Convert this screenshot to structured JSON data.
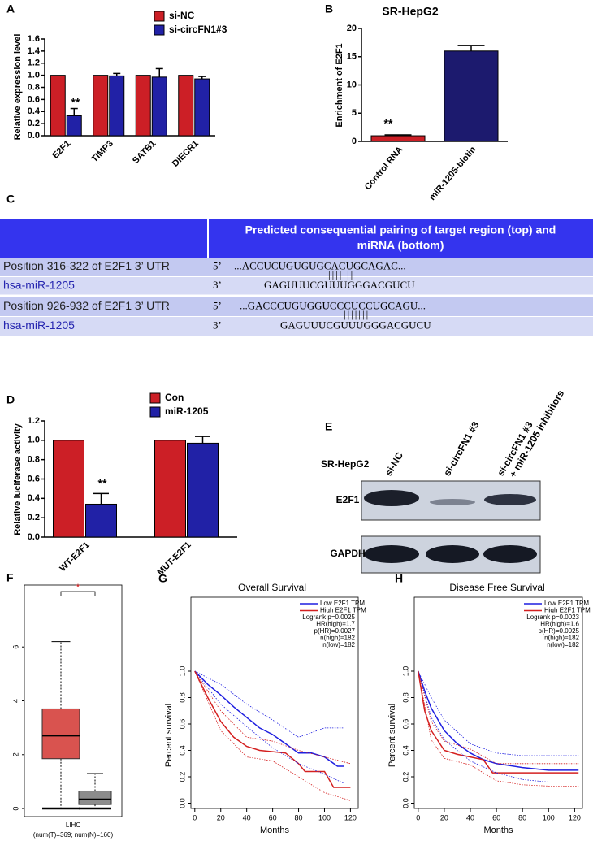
{
  "chart_data": [
    {
      "type": "bar",
      "panel": "A",
      "ylabel": "Relative  expression level",
      "categories": [
        "E2F1",
        "TIMP3",
        "SATB1",
        "DIECR1"
      ],
      "series": [
        {
          "name": "si-NC",
          "color": "#cc1f26",
          "values": [
            1,
            1,
            1,
            1
          ]
        },
        {
          "name": "si-circFN1#3",
          "color": "#2121a6",
          "values": [
            0.33,
            0.99,
            0.97,
            0.94
          ],
          "errors": [
            0.12,
            0.04,
            0.14,
            0.04
          ]
        }
      ],
      "ylim": [
        0,
        1.6
      ],
      "yticks": [
        {
          "value": 0,
          "label": "0.0"
        },
        0.2,
        0.4,
        0.6,
        0.8,
        {
          "value": 1,
          "label": "1.0"
        },
        1.2,
        1.4,
        1.6
      ],
      "annotations": [
        "**"
      ]
    },
    {
      "type": "bar",
      "panel": "B",
      "title": "SR-HepG2",
      "ylabel": "Enrichment of E2F1",
      "categories": [
        "Control RNA",
        "miR-1205-biotin"
      ],
      "values": [
        1,
        16
      ],
      "errors": [
        0.15,
        1
      ],
      "colors": [
        "#cc1f26",
        "#1c1a6e"
      ],
      "ylim": [
        0,
        20
      ],
      "yticks": [
        0,
        5,
        10,
        15,
        20
      ],
      "annotations": [
        "**"
      ]
    },
    {
      "type": "bar",
      "panel": "D",
      "ylabel": "Relative luciferase activity",
      "categories": [
        "WT-E2F1",
        "MUT-E2F1"
      ],
      "series": [
        {
          "name": "Con",
          "color": "#cc1f26",
          "values": [
            1,
            1
          ]
        },
        {
          "name": "miR-1205",
          "color": "#2121a6",
          "values": [
            0.34,
            0.97
          ],
          "errors": [
            0.11,
            0.07
          ]
        }
      ],
      "ylim": [
        0,
        1.2
      ],
      "yticks": [
        {
          "value": 0,
          "label": "0.0"
        },
        0.2,
        0.4,
        0.6,
        0.8,
        {
          "value": 1,
          "label": "1.0"
        },
        1.2
      ],
      "annotations": [
        "**"
      ]
    },
    {
      "type": "box",
      "panel": "F",
      "xlabel": "LIHC",
      "xsublabel": "(num(T)=369; num(N)=160)",
      "boxes": [
        {
          "color": "#d9534f",
          "min": 0,
          "q1": 1.85,
          "median": 2.7,
          "q3": 3.7,
          "max": 6.2
        },
        {
          "color": "#8c8c8c",
          "min": 0,
          "q1": 0.15,
          "median": 0.35,
          "q3": 0.65,
          "max": 1.3
        }
      ],
      "ylim": [
        -0.3,
        8.3
      ],
      "yticks": [
        0,
        2,
        4,
        6
      ],
      "annotations": [
        "*"
      ]
    },
    {
      "type": "line",
      "panel": "G",
      "title": "Overall Survival",
      "xlabel": "Months",
      "ylabel": "Percent survival",
      "xlim": [
        -3,
        126
      ],
      "xticks": [
        0,
        20,
        40,
        60,
        80,
        100,
        120
      ],
      "ylim": [
        -0.04,
        1.56
      ],
      "yticks": [
        {
          "value": 0,
          "label": "0.0"
        },
        0.2,
        0.4,
        0.6,
        0.8,
        {
          "value": 1,
          "label": "1.0"
        }
      ],
      "legend": "upper right",
      "legend_text": [
        "Logrank p=0.0025",
        "HR(high)=1.7",
        "p(HR)=0.0027",
        "n(high)=182",
        "n(low)=182"
      ],
      "series": [
        {
          "name": "Low E2F1 TPM",
          "color": "#1f1fe0",
          "x": [
            0,
            5,
            10,
            20,
            30,
            40,
            50,
            60,
            70,
            80,
            90,
            100,
            110,
            115
          ],
          "values": [
            1,
            0.95,
            0.9,
            0.82,
            0.73,
            0.65,
            0.57,
            0.52,
            0.45,
            0.38,
            0.38,
            0.35,
            0.28,
            0.28
          ]
        },
        {
          "name": "High E2F1 TPM",
          "color": "#d42020",
          "x": [
            0,
            5,
            10,
            20,
            30,
            40,
            50,
            60,
            70,
            80,
            85,
            100,
            107,
            120
          ],
          "values": [
            1,
            0.9,
            0.8,
            0.62,
            0.5,
            0.43,
            0.4,
            0.39,
            0.38,
            0.3,
            0.24,
            0.24,
            0.12,
            0.12
          ]
        },
        {
          "color": "#1f1fe0",
          "dash": "dotted",
          "x": [
            0,
            20,
            40,
            60,
            80,
            100,
            115
          ],
          "values": [
            1,
            0.9,
            0.75,
            0.63,
            0.5,
            0.57,
            0.57
          ]
        },
        {
          "color": "#1f1fe0",
          "dash": "dotted",
          "x": [
            0,
            20,
            40,
            60,
            80,
            100,
            115
          ],
          "values": [
            1,
            0.75,
            0.58,
            0.42,
            0.3,
            0.22,
            0.15
          ]
        },
        {
          "color": "#d42020",
          "dash": "dotted",
          "x": [
            0,
            20,
            40,
            60,
            80,
            100,
            120
          ],
          "values": [
            1,
            0.7,
            0.5,
            0.47,
            0.4,
            0.35,
            0.3
          ]
        },
        {
          "color": "#d42020",
          "dash": "dotted",
          "x": [
            0,
            20,
            40,
            60,
            80,
            100,
            120
          ],
          "values": [
            1,
            0.55,
            0.35,
            0.32,
            0.2,
            0.08,
            0.02
          ]
        }
      ]
    },
    {
      "type": "line",
      "panel": "H",
      "title": "Disease Free Survival",
      "xlabel": "Months",
      "ylabel": "Percent survival",
      "xlim": [
        -3,
        126
      ],
      "xticks": [
        0,
        20,
        40,
        60,
        80,
        100,
        120
      ],
      "ylim": [
        -0.04,
        1.56
      ],
      "yticks": [
        {
          "value": 0,
          "label": "0.0"
        },
        0.2,
        0.4,
        0.6,
        0.8,
        {
          "value": 1,
          "label": "1.0"
        }
      ],
      "legend": "upper right",
      "legend_text": [
        "Logrank p=0.0023",
        "HR(high)=1.6",
        "p(HR)=0.0025",
        "n(high)=182",
        "n(low)=182"
      ],
      "series": [
        {
          "name": "Low E2F1 TPM",
          "color": "#1f1fe0",
          "x": [
            0,
            5,
            10,
            20,
            30,
            40,
            50,
            60,
            80,
            100,
            123
          ],
          "values": [
            1,
            0.85,
            0.72,
            0.55,
            0.45,
            0.38,
            0.33,
            0.3,
            0.27,
            0.25,
            0.25
          ]
        },
        {
          "name": "High E2F1 TPM",
          "color": "#d42020",
          "x": [
            0,
            5,
            10,
            20,
            30,
            40,
            50,
            57,
            70,
            100,
            123
          ],
          "values": [
            1,
            0.7,
            0.55,
            0.4,
            0.37,
            0.35,
            0.33,
            0.23,
            0.23,
            0.23,
            0.23
          ]
        },
        {
          "color": "#1f1fe0",
          "dash": "dotted",
          "x": [
            0,
            10,
            20,
            40,
            60,
            80,
            100,
            123
          ],
          "values": [
            1,
            0.8,
            0.63,
            0.45,
            0.38,
            0.36,
            0.36,
            0.36
          ]
        },
        {
          "color": "#1f1fe0",
          "dash": "dotted",
          "x": [
            0,
            10,
            20,
            40,
            60,
            80,
            100,
            123
          ],
          "values": [
            1,
            0.65,
            0.48,
            0.32,
            0.23,
            0.18,
            0.16,
            0.16
          ]
        },
        {
          "color": "#d42020",
          "dash": "dotted",
          "x": [
            0,
            10,
            20,
            40,
            60,
            80,
            100,
            123
          ],
          "values": [
            1,
            0.62,
            0.47,
            0.41,
            0.3,
            0.3,
            0.3,
            0.3
          ]
        },
        {
          "color": "#d42020",
          "dash": "dotted",
          "x": [
            0,
            10,
            20,
            40,
            60,
            80,
            100,
            123
          ],
          "values": [
            1,
            0.48,
            0.34,
            0.29,
            0.17,
            0.14,
            0.13,
            0.13
          ]
        }
      ]
    }
  ],
  "table": {
    "panel": "C",
    "header": [
      "Predicted consequential pairing of target region (top) and",
      "miRNA (bottom)"
    ],
    "rows": [
      {
        "label": "Position 316-322 of E2F1 3’ UTR",
        "end": "5’",
        "sequence": "...ACCUCUGUGUGCACUGCAGAC..."
      },
      {
        "label": "hsa-miR-1205",
        "end": "3’",
        "sequence": "GAGUUUCGUUUGGGACGUCU",
        "pairing": "|||||||"
      },
      {
        "label": "Position 926-932 of E2F1 3’ UTR",
        "end": "5’",
        "sequence": "...GACCCUGUGGUCCCUCCUGCAGU..."
      },
      {
        "label": "hsa-miR-1205",
        "end": "3’",
        "sequence": "GAGUUUCGUUUGGGACGUCU",
        "pairing": "|||||||"
      }
    ]
  },
  "blot": {
    "panel": "E",
    "cell_line": "SR-HepG2",
    "lanes": [
      [
        "si-NC"
      ],
      [
        "si-circFN1 #3"
      ],
      [
        "si-circFN1 #3",
        "+ miR-1205 inhibitors"
      ]
    ],
    "proteins": [
      "E2F1",
      "GAPDH"
    ]
  }
}
